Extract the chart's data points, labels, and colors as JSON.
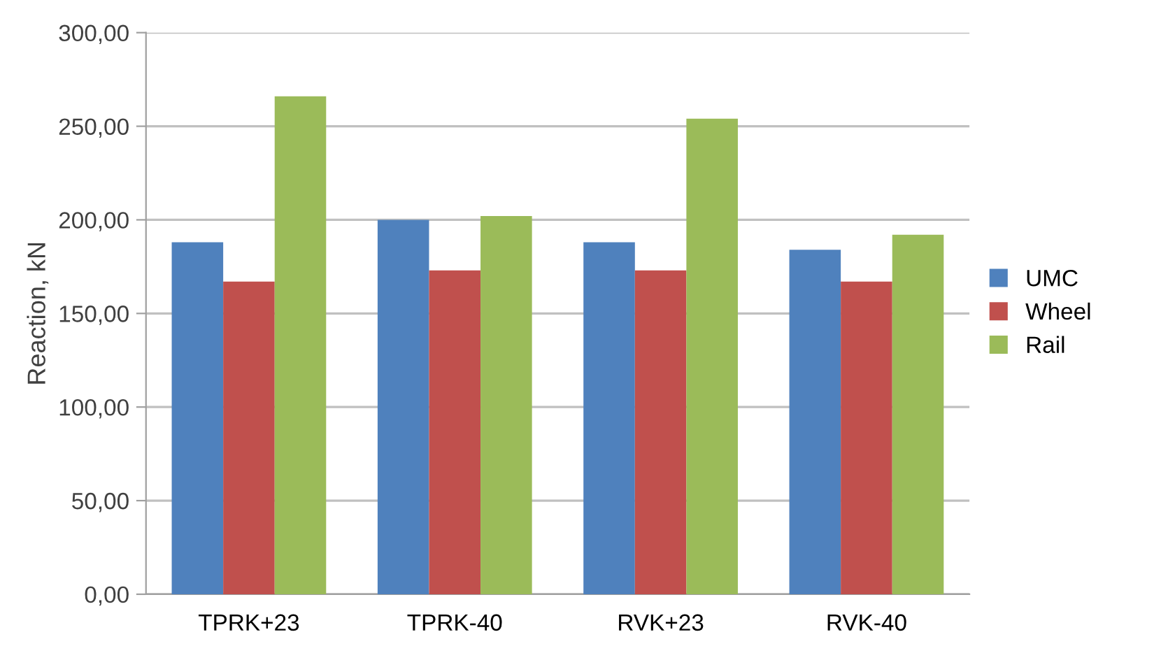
{
  "chart_data": {
    "type": "bar",
    "ylabel": "Reaction, kN",
    "categories": [
      "TPRK+23",
      "TPRK-40",
      "RVK+23",
      "RVK-40"
    ],
    "series": [
      {
        "name": "UMC",
        "color": "#4f81bd",
        "values": [
          188,
          200,
          188,
          184
        ]
      },
      {
        "name": "Wheel",
        "color": "#c0504d",
        "values": [
          167,
          173,
          173,
          167
        ]
      },
      {
        "name": "Rail",
        "color": "#9bbb59",
        "values": [
          266,
          202,
          254,
          192
        ]
      }
    ],
    "ylim": [
      0,
      300
    ],
    "yticks": [
      {
        "value": 0,
        "label": "0,00"
      },
      {
        "value": 50,
        "label": "50,00"
      },
      {
        "value": 100,
        "label": "100,00"
      },
      {
        "value": 150,
        "label": "150,00"
      },
      {
        "value": 200,
        "label": "200,00"
      },
      {
        "value": 250,
        "label": "250,00"
      },
      {
        "value": 300,
        "label": "300,00"
      }
    ],
    "grid": "y",
    "legend": "right"
  }
}
